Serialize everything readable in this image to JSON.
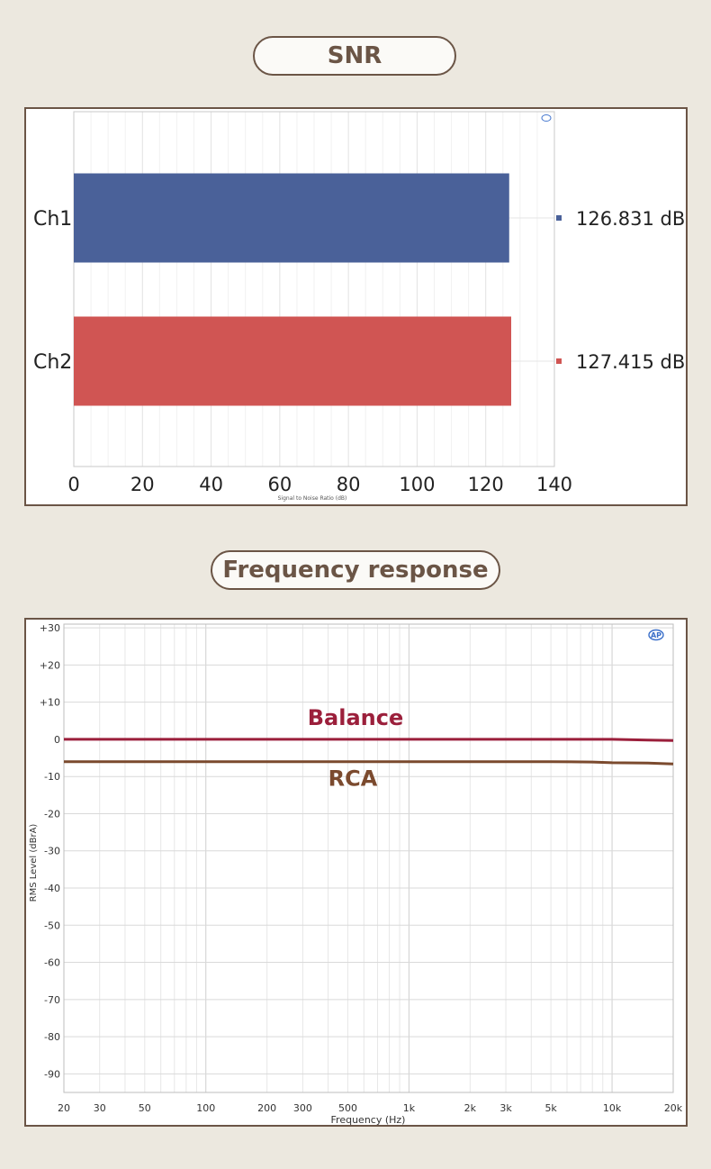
{
  "snr": {
    "title": "SNR",
    "chart_data": {
      "type": "bar",
      "orientation": "horizontal",
      "categories": [
        "Ch1",
        "Ch2"
      ],
      "values": [
        126.831,
        127.415
      ],
      "value_labels": [
        "126.831 dB",
        "127.415 dB"
      ],
      "colors": [
        "#4a6199",
        "#d05553"
      ],
      "xlim": [
        0,
        140
      ],
      "xticks": [
        0,
        20,
        40,
        60,
        80,
        100,
        120,
        140
      ],
      "xlabel": "Signal to Noise Ratio (dB)",
      "grid": true
    }
  },
  "fr": {
    "title": "Frequency response",
    "chart_data": {
      "type": "line",
      "xscale": "log",
      "xlim": [
        20,
        20000
      ],
      "ylim": [
        -95,
        31
      ],
      "xlabel": "Frequency (Hz)",
      "ylabel": "RMS Level (dBrA)",
      "xticks": [
        20,
        30,
        50,
        100,
        200,
        300,
        500,
        1000,
        2000,
        3000,
        5000,
        10000,
        20000
      ],
      "xtick_labels": [
        "20",
        "30",
        "50",
        "100",
        "200",
        "300",
        "500",
        "1k",
        "2k",
        "3k",
        "5k",
        "10k",
        "20k"
      ],
      "yticks": [
        30,
        20,
        10,
        0,
        -10,
        -20,
        -30,
        -40,
        -50,
        -60,
        -70,
        -80,
        -90
      ],
      "ytick_labels": [
        "+30",
        "+20",
        "+10",
        "0",
        "-10",
        "-20",
        "-30",
        "-40",
        "-50",
        "-60",
        "-70",
        "-80",
        "-90"
      ],
      "grid": true,
      "series": [
        {
          "name": "Balance",
          "color": "#9b1f3b",
          "x": [
            20,
            100,
            1000,
            5000,
            10000,
            15000,
            20000
          ],
          "y": [
            0,
            0,
            0,
            0,
            0,
            -0.2,
            -0.3
          ]
        },
        {
          "name": "RCA",
          "color": "#7b4a2e",
          "x": [
            20,
            100,
            1000,
            5000,
            8000,
            10000,
            15000,
            20000
          ],
          "y": [
            -6,
            -6,
            -6,
            -6,
            -6.1,
            -6.3,
            -6.4,
            -6.6
          ]
        }
      ]
    }
  }
}
